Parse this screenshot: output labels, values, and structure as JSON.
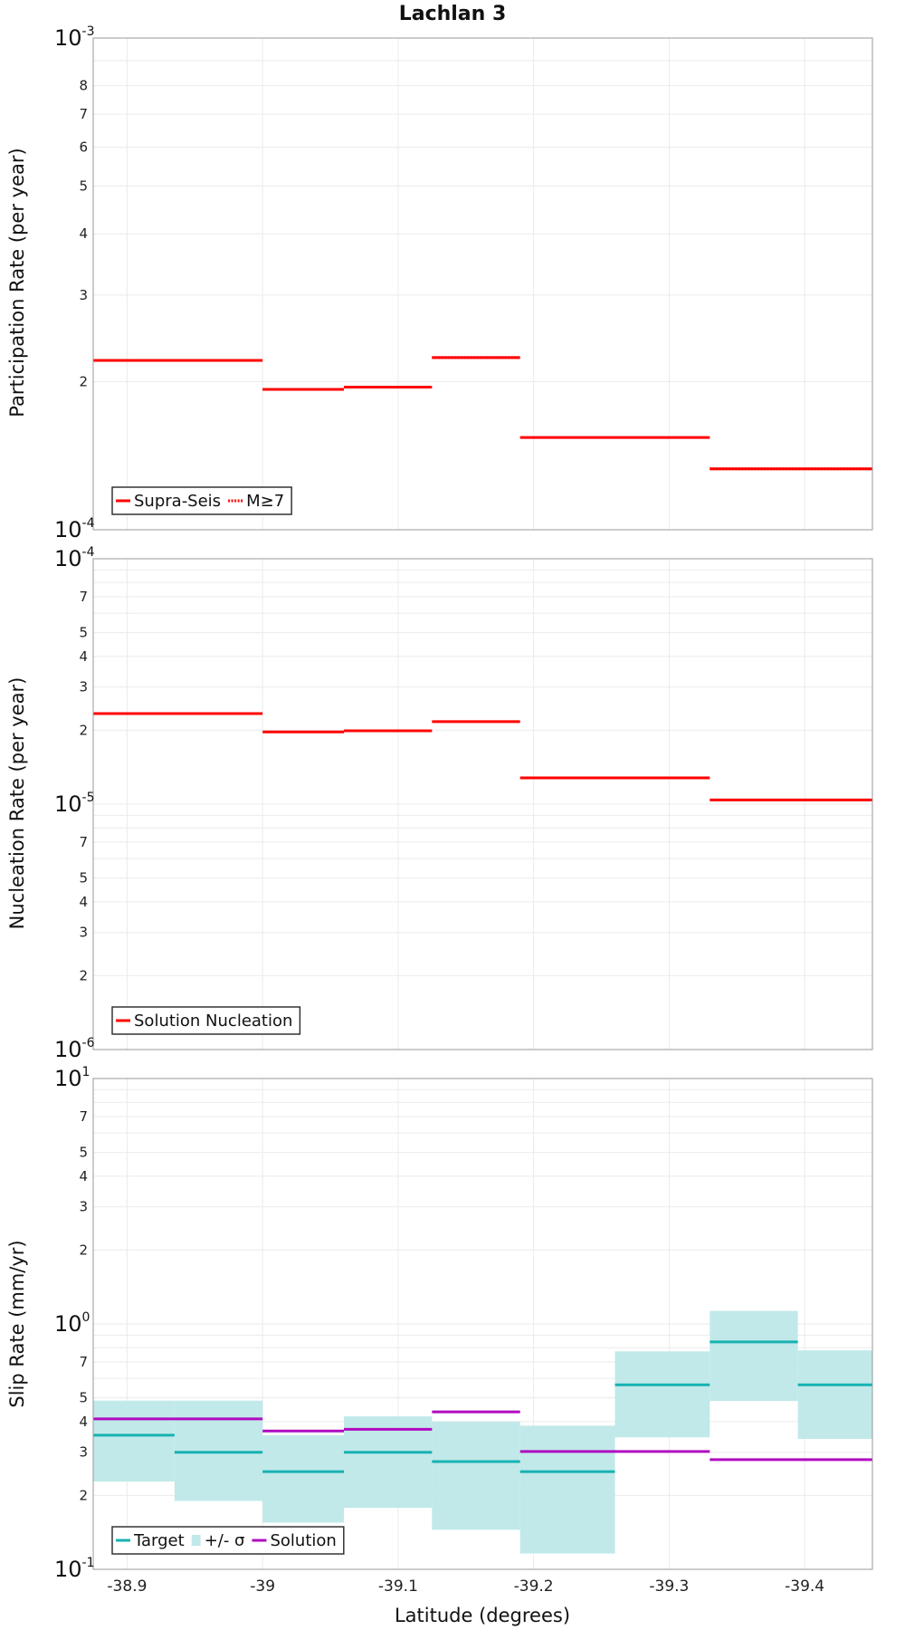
{
  "chart_data": [
    {
      "type": "step",
      "panel": "participation",
      "title": "Lachlan 3",
      "ylabel": "Participation Rate (per year)",
      "yscale": "log",
      "ylim": [
        0.0001,
        0.001
      ],
      "major_ticks": [
        {
          "base": "10",
          "exp": "-3",
          "value": 0.001
        },
        {
          "base": "10",
          "exp": "-4",
          "value": 0.0001
        }
      ],
      "minor_ticks": [
        {
          "label": "8",
          "value": 0.0008
        },
        {
          "label": "7",
          "value": 0.0007
        },
        {
          "label": "6",
          "value": 0.0006
        },
        {
          "label": "5",
          "value": 0.0005
        },
        {
          "label": "4",
          "value": 0.0004
        },
        {
          "label": "3",
          "value": 0.0003
        },
        {
          "label": "2",
          "value": 0.0002
        }
      ],
      "legend": {
        "position": "bottom-left",
        "entries": [
          {
            "label": "Supra-Seis",
            "style": "solid",
            "color": "#ff0000"
          },
          {
            "label": "M≥7",
            "style": "dotted",
            "color": "#ff0000"
          }
        ]
      },
      "series": [
        {
          "name": "Supra-Seis",
          "style": "solid",
          "color": "#ff0000",
          "segments": [
            {
              "x0": -38.875,
              "x1": -39.0,
              "y": 0.000221
            },
            {
              "x0": -39.0,
              "x1": -39.06,
              "y": 0.000193
            },
            {
              "x0": -39.06,
              "x1": -39.125,
              "y": 0.000195
            },
            {
              "x0": -39.125,
              "x1": -39.19,
              "y": 0.000224
            },
            {
              "x0": -39.19,
              "x1": -39.33,
              "y": 0.000154
            },
            {
              "x0": -39.33,
              "x1": -39.45,
              "y": 0.000133
            }
          ]
        },
        {
          "name": "M≥7",
          "style": "dotted",
          "color": "#ff0000",
          "segments": [
            {
              "x0": -39.0,
              "x1": -39.06,
              "y": 0.000193
            },
            {
              "x0": -39.06,
              "x1": -39.125,
              "y": 0.000195
            },
            {
              "x0": -39.125,
              "x1": -39.19,
              "y": 0.000224
            },
            {
              "x0": -39.33,
              "x1": -39.45,
              "y": 0.000133
            }
          ]
        }
      ]
    },
    {
      "type": "step",
      "panel": "nucleation",
      "ylabel": "Nucleation Rate (per year)",
      "yscale": "log",
      "ylim": [
        1e-06,
        0.0001
      ],
      "major_ticks": [
        {
          "base": "10",
          "exp": "-4",
          "value": 0.0001
        },
        {
          "base": "10",
          "exp": "-5",
          "value": 1e-05
        },
        {
          "base": "10",
          "exp": "-6",
          "value": 1e-06
        }
      ],
      "minor_ticks": [
        {
          "label": "7",
          "value": 7e-05
        },
        {
          "label": "5",
          "value": 5e-05
        },
        {
          "label": "4",
          "value": 4e-05
        },
        {
          "label": "3",
          "value": 3e-05
        },
        {
          "label": "2",
          "value": 2e-05
        },
        {
          "label": "7",
          "value": 7e-06
        },
        {
          "label": "5",
          "value": 5e-06
        },
        {
          "label": "4",
          "value": 4e-06
        },
        {
          "label": "3",
          "value": 3e-06
        },
        {
          "label": "2",
          "value": 2e-06
        }
      ],
      "legend": {
        "position": "bottom-left",
        "entries": [
          {
            "label": "Solution Nucleation",
            "style": "solid",
            "color": "#ff0000"
          }
        ]
      },
      "series": [
        {
          "name": "Solution Nucleation",
          "style": "solid",
          "color": "#ff0000",
          "segments": [
            {
              "x0": -38.875,
              "x1": -39.0,
              "y": 2.34e-05
            },
            {
              "x0": -39.0,
              "x1": -39.06,
              "y": 1.97e-05
            },
            {
              "x0": -39.06,
              "x1": -39.125,
              "y": 1.99e-05
            },
            {
              "x0": -39.125,
              "x1": -39.19,
              "y": 2.17e-05
            },
            {
              "x0": -39.19,
              "x1": -39.33,
              "y": 1.28e-05
            },
            {
              "x0": -39.33,
              "x1": -39.45,
              "y": 1.04e-05
            }
          ]
        }
      ]
    },
    {
      "type": "step",
      "panel": "slip",
      "ylabel": "Slip Rate (mm/yr)",
      "xlabel": "Latitude (degrees)",
      "yscale": "log",
      "ylim": [
        0.1,
        10
      ],
      "xlim": [
        -38.875,
        -39.45
      ],
      "x_ticks": [
        {
          "label": "-38.9",
          "value": -38.9
        },
        {
          "label": "-39",
          "value": -39.0
        },
        {
          "label": "-39.1",
          "value": -39.1
        },
        {
          "label": "-39.2",
          "value": -39.2
        },
        {
          "label": "-39.3",
          "value": -39.3
        },
        {
          "label": "-39.4",
          "value": -39.4
        }
      ],
      "major_ticks": [
        {
          "base": "10",
          "exp": "1",
          "value": 10
        },
        {
          "base": "10",
          "exp": "0",
          "value": 1
        },
        {
          "base": "10",
          "exp": "-1",
          "value": 0.1
        }
      ],
      "minor_ticks": [
        {
          "label": "7",
          "value": 7
        },
        {
          "label": "5",
          "value": 5
        },
        {
          "label": "4",
          "value": 4
        },
        {
          "label": "3",
          "value": 3
        },
        {
          "label": "2",
          "value": 2
        },
        {
          "label": "7",
          "value": 0.7
        },
        {
          "label": "5",
          "value": 0.5
        },
        {
          "label": "4",
          "value": 0.4
        },
        {
          "label": "3",
          "value": 0.3
        },
        {
          "label": "2",
          "value": 0.2
        }
      ],
      "legend": {
        "position": "bottom-left",
        "entries": [
          {
            "label": "Target",
            "style": "solid",
            "color": "#17b2b2"
          },
          {
            "label": "+/- σ",
            "style": "band",
            "color": "#c1e9e9"
          },
          {
            "label": "Solution",
            "style": "solid",
            "color": "#b00bc0"
          }
        ]
      },
      "bands": [
        {
          "x0": -38.875,
          "x1": -38.935,
          "lo": 0.228,
          "hi": 0.487
        },
        {
          "x0": -38.935,
          "x1": -39.0,
          "lo": 0.19,
          "hi": 0.487
        },
        {
          "x0": -39.0,
          "x1": -39.06,
          "lo": 0.155,
          "hi": 0.352
        },
        {
          "x0": -39.06,
          "x1": -39.125,
          "lo": 0.178,
          "hi": 0.42
        },
        {
          "x0": -39.125,
          "x1": -39.19,
          "lo": 0.145,
          "hi": 0.4
        },
        {
          "x0": -39.19,
          "x1": -39.26,
          "lo": 0.116,
          "hi": 0.385
        },
        {
          "x0": -39.26,
          "x1": -39.33,
          "lo": 0.345,
          "hi": 0.773
        },
        {
          "x0": -39.33,
          "x1": -39.395,
          "lo": 0.485,
          "hi": 1.13
        },
        {
          "x0": -39.395,
          "x1": -39.45,
          "lo": 0.34,
          "hi": 0.78
        }
      ],
      "series": [
        {
          "name": "Target",
          "style": "solid",
          "color": "#17b2b2",
          "segments": [
            {
              "x0": -38.875,
              "x1": -38.935,
              "y": 0.352
            },
            {
              "x0": -38.935,
              "x1": -39.0,
              "y": 0.3
            },
            {
              "x0": -39.0,
              "x1": -39.06,
              "y": 0.25
            },
            {
              "x0": -39.06,
              "x1": -39.125,
              "y": 0.3
            },
            {
              "x0": -39.125,
              "x1": -39.19,
              "y": 0.275
            },
            {
              "x0": -39.19,
              "x1": -39.26,
              "y": 0.25
            },
            {
              "x0": -39.26,
              "x1": -39.33,
              "y": 0.565
            },
            {
              "x0": -39.33,
              "x1": -39.395,
              "y": 0.845
            },
            {
              "x0": -39.395,
              "x1": -39.45,
              "y": 0.565
            }
          ]
        },
        {
          "name": "Solution",
          "style": "solid",
          "color": "#b00bc0",
          "segments": [
            {
              "x0": -38.875,
              "x1": -39.0,
              "y": 0.41
            },
            {
              "x0": -39.0,
              "x1": -39.06,
              "y": 0.366
            },
            {
              "x0": -39.06,
              "x1": -39.125,
              "y": 0.372
            },
            {
              "x0": -39.125,
              "x1": -39.19,
              "y": 0.438
            },
            {
              "x0": -39.19,
              "x1": -39.33,
              "y": 0.302
            },
            {
              "x0": -39.33,
              "x1": -39.45,
              "y": 0.28
            }
          ]
        }
      ]
    }
  ]
}
